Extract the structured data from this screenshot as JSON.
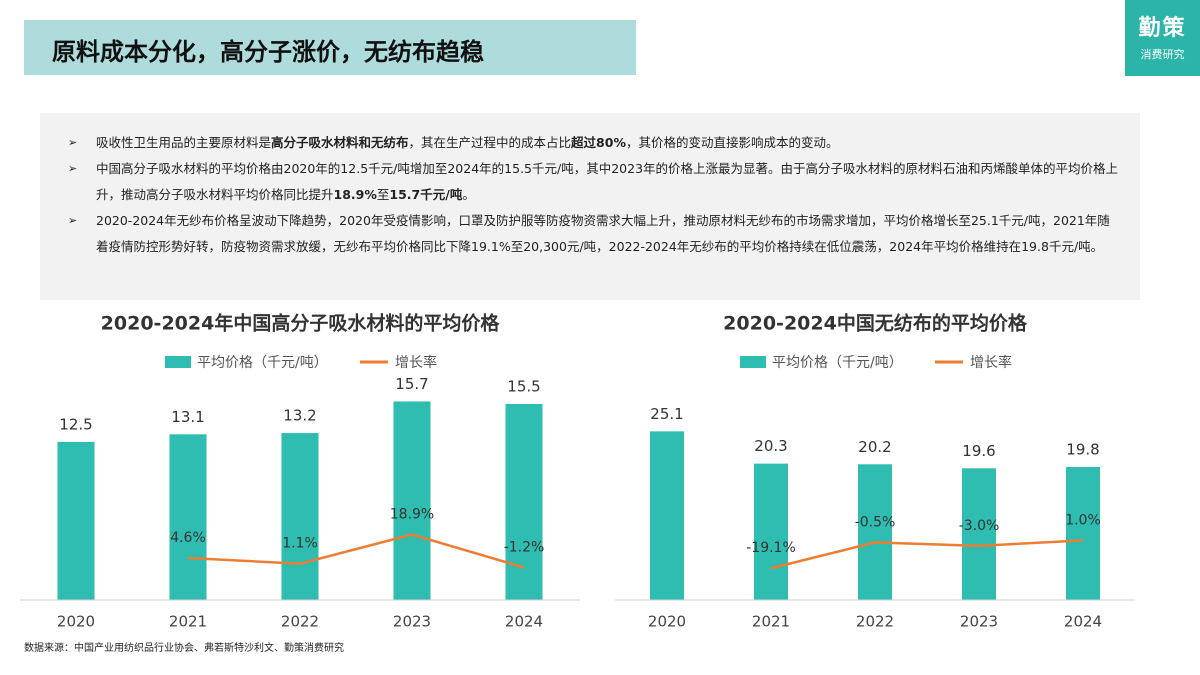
{
  "header": {
    "title": "原料成本分化，高分子涨价，无纺布趋稳",
    "logo": "勤策",
    "logo_sub": "消费研究"
  },
  "bullets": [
    [
      "吸收性卫生用品的主要原材料是",
      "高分子吸水材料和无纺布",
      "，其在生产过程中的成本占比",
      "超过80%",
      "，其价格的变动直接影响成本的变动。"
    ],
    [
      "中国高分子吸水材料的平均价格由2020年的12.5千元/吨增加至2024年的15.5千元/吨，其中2023年的价格上涨最为显著。由于高分子吸水材料的原材料石油和丙烯酸单体的平均价格上升，推动高分子吸水材料平均价格同比提升",
      "18.9%",
      "至",
      "15.7千元/吨",
      "。"
    ],
    [
      "2020-2024年无纱布价格呈波动下降趋势，2020年受疫情影响，口罩及防护服等防疫物资需求大幅上升，推动原材料无纱布的市场需求增加，平均价格增长至25.1千元/吨，2021年随着疫情防控形势好转，防疫物资需求放缓，无纱布平均价格同比下降19.1%至20,300元/吨，2022-2024年无纱布的平均价格持续在低位震荡，2024年平均价格维持在19.8千元/吨。"
    ]
  ],
  "source": "数据来源：中国产业用纺织品行业协会、弗若斯特沙利文、勤策消费研究",
  "chart_data": [
    {
      "type": "bar-line",
      "title": "2020-2024年中国高分子吸水材料的平均价格",
      "categories": [
        "2020",
        "2021",
        "2022",
        "2023",
        "2024"
      ],
      "series": [
        {
          "name": "平均价格（千元/吨）",
          "color": "#2ebdb0",
          "values": [
            12.5,
            13.1,
            13.2,
            15.7,
            15.5
          ]
        },
        {
          "name": "增长率",
          "color": "#ed7d31",
          "axis": "y2",
          "values": [
            null,
            4.6,
            1.1,
            18.9,
            -1.2
          ],
          "value_labels": [
            null,
            "4.6%",
            "1.1%",
            "18.9%",
            "-1.2%"
          ]
        }
      ],
      "ylim": [
        0,
        17
      ],
      "y2lim": [
        -21,
        110
      ]
    },
    {
      "type": "bar-line",
      "title": "2020-2024中国无纺布的平均价格",
      "categories": [
        "2020",
        "2021",
        "2022",
        "2023",
        "2024"
      ],
      "series": [
        {
          "name": "平均价格（千元/吨）",
          "color": "#2ebdb0",
          "values": [
            25.1,
            20.3,
            20.2,
            19.6,
            19.8
          ]
        },
        {
          "name": "增长率",
          "color": "#ed7d31",
          "axis": "y2",
          "values": [
            null,
            -19.1,
            -0.5,
            -3.0,
            1.0
          ],
          "value_labels": [
            null,
            "-19.1%",
            "-0.5%",
            "-3.0%",
            "1.0%"
          ]
        }
      ],
      "ylim": [
        0,
        32
      ],
      "y2lim": [
        -42,
        113
      ]
    }
  ]
}
